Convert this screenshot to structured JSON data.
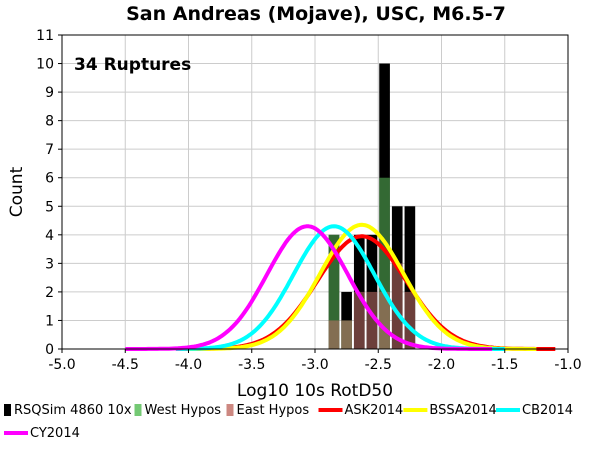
{
  "chart_data": {
    "type": "bar",
    "title": "San Andreas (Mojave), USC, M6.5-7",
    "annotation": "34 Ruptures",
    "xlabel": "Log10 10s RotD50",
    "ylabel": "Count",
    "xlim": [
      -5.0,
      -1.0
    ],
    "ylim": [
      0,
      11
    ],
    "x_ticks": [
      "-5.0",
      "-4.5",
      "-4.0",
      "-3.5",
      "-3.0",
      "-2.5",
      "-2.0",
      "-1.5",
      "-1.0"
    ],
    "y_ticks": [
      "0",
      "1",
      "2",
      "3",
      "4",
      "5",
      "6",
      "7",
      "8",
      "9",
      "10",
      "11"
    ],
    "grid": true,
    "legend_position": "bottom",
    "histogram": {
      "bin_width": 0.1,
      "bin_centers": [
        -2.85,
        -2.75,
        -2.65,
        -2.55,
        -2.45,
        -2.35,
        -2.25
      ],
      "counts": [
        4,
        2,
        4,
        4,
        10,
        5,
        5
      ],
      "west_counts": [
        4,
        1,
        0,
        0,
        6,
        0,
        0
      ],
      "east_counts": [
        1,
        1,
        2,
        2,
        2,
        3,
        2
      ]
    },
    "series": [
      {
        "name": "RSQSim 4860 10x",
        "kind": "bar",
        "color": "#000000"
      },
      {
        "name": "West Hypos",
        "kind": "bar",
        "color": "#5cbf5c"
      },
      {
        "name": "East Hypos",
        "kind": "bar",
        "color": "#c4736b"
      },
      {
        "name": "ASK2014",
        "kind": "line",
        "color": "#ff0000",
        "mean": -2.63,
        "sigma": 0.35,
        "peak": 3.95,
        "x_range": [
          -4.1,
          -1.1
        ]
      },
      {
        "name": "BSSA2014",
        "kind": "line",
        "color": "#ffff00",
        "mean": -2.63,
        "sigma": 0.33,
        "peak": 4.35,
        "x_range": [
          -4.0,
          -1.25
        ]
      },
      {
        "name": "CB2014",
        "kind": "line",
        "color": "#00ffff",
        "mean": -2.85,
        "sigma": 0.32,
        "peak": 4.3,
        "x_range": [
          -4.1,
          -1.5
        ]
      },
      {
        "name": "CY2014",
        "kind": "line",
        "color": "#ff00ff",
        "mean": -3.06,
        "sigma": 0.32,
        "peak": 4.3,
        "x_range": [
          -4.5,
          -1.6
        ]
      }
    ]
  }
}
